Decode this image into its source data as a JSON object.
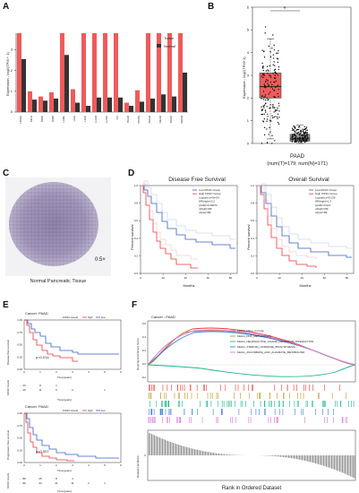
{
  "panels": {
    "A": {
      "label": "A",
      "ylabel": "Expression - log2(TPM + 1)",
      "yticks": [
        "0",
        "1",
        "2",
        "3"
      ],
      "legend": [
        "Tumor",
        "Normal"
      ],
      "colors": {
        "tumor": "#ef5b5b",
        "normal": "#333333"
      },
      "chart_data": {
        "type": "bar",
        "categories": [
          "HNSC",
          "KICH",
          "KIRC",
          "KIRP",
          "LAML",
          "LGG",
          "LIHC",
          "LUAD",
          "LUSC",
          "OV",
          "PAAD",
          "PCPG",
          "PRAD",
          "READ",
          "SARC",
          "SKCM"
        ],
        "series": [
          {
            "name": "Tumor",
            "values": [
              3.8,
              1.0,
              0.75,
              0.95,
              3.8,
              1.1,
              3.8,
              3.8,
              3.8,
              3.8,
              0.45,
              1.05,
              3.8,
              3.8,
              3.8,
              3.8
            ]
          },
          {
            "name": "Normal",
            "values": [
              2.55,
              0.6,
              0.55,
              0.65,
              2.75,
              0.45,
              0.3,
              0.7,
              0.7,
              0.7,
              0.3,
              0.5,
              0.65,
              0.85,
              0.75,
              1.9
            ]
          }
        ],
        "ylim": [
          0,
          3.8
        ]
      }
    },
    "B": {
      "label": "B",
      "ylabel": "Expression - log2(TPM+1)",
      "yticks": [
        "0",
        "1",
        "2",
        "3",
        "4",
        "5",
        "6"
      ],
      "star": "*",
      "xlabel": "PAAD",
      "sub": "(num(T)=179; num(N)=171)",
      "chart_data": {
        "type": "box",
        "groups": [
          "Tumor",
          "Normal"
        ],
        "series": [
          {
            "name": "Tumor",
            "median": 2.5,
            "q1": 2.0,
            "q3": 3.1,
            "whisker_low": 0.2,
            "whisker_high": 4.6
          },
          {
            "name": "Normal",
            "median": 0.2,
            "q1": 0.1,
            "q3": 0.4,
            "whisker_low": 0.0,
            "whisker_high": 0.8
          }
        ],
        "ylim": [
          0,
          6
        ]
      }
    },
    "C": {
      "label": "C",
      "zoom": "0.5×",
      "caption": "Normal Pancreatic Tissue"
    },
    "D": {
      "label": "D",
      "left_title": "Disease Free Survival",
      "right_title": "Overall Survival",
      "ylabel": "Percent survival",
      "xlabel": "Months",
      "left_legend": [
        "Low KIF2C Group",
        "High KIF2C Group",
        "Logrank p=5e-04",
        "HR(high)=2.2",
        "p(HR)=0.00072",
        "n(high)=89",
        "n(low)=89"
      ],
      "right_legend": [
        "Low KIF2C Group",
        "High KIF2C Group",
        "Logrank p=0.016",
        "HR(high)=1.6",
        "p(HR)=0.021",
        "n(high)=89",
        "n(low)=89"
      ],
      "xticks": [
        "0",
        "20",
        "40",
        "60",
        "80"
      ],
      "yticks": [
        "0.0",
        "0.2",
        "0.4",
        "0.6",
        "0.8",
        "1.0"
      ],
      "colors": {
        "low": "#3a5fbf",
        "high": "#e8383d"
      }
    },
    "E": {
      "label": "E",
      "top_title": "Cancer: PAAD",
      "bottom_title": "Cancer: PAAD",
      "legend": [
        "KIF2C levels",
        "high",
        "low"
      ],
      "top_ylabel": "Disease free survival",
      "bottom_ylabel": "Progression free survival",
      "top_p": "p=0.014",
      "bottom_p": "p=0.007",
      "xlabel": "Time(years)",
      "risk_label": "KIF2C levels",
      "xticks": [
        "0",
        "1",
        "2",
        "3",
        "4",
        "5",
        "6"
      ],
      "yticks": [
        "0.00",
        "0.25",
        "0.50",
        "0.75",
        "1.00"
      ],
      "risk_top": {
        "high": [
          "23",
          "8",
          "1",
          "",
          "",
          ""
        ],
        "low": [
          "26",
          "11",
          "6",
          "2",
          "",
          "1"
        ]
      },
      "risk_bottom": {
        "high": [
          "89",
          "25",
          "8",
          "4",
          "",
          ""
        ],
        "low": [
          "89",
          "44",
          "21",
          "11",
          "2",
          "1"
        ]
      },
      "colors": {
        "high": "#e8383d",
        "low": "#3a5fbf"
      }
    },
    "F": {
      "label": "F",
      "title": "Cancer : PAAD",
      "ylabel_top": "Running Enrichment Score",
      "ylabel_bottom": "Ranked List Metric",
      "xlabel": "Rank in Ordered Dataset",
      "yticks": [
        "-0.2",
        "0.0",
        "0.2",
        "0.4",
        "0.6"
      ],
      "legend": [
        {
          "name": "KEGG_CELL_CYCLE",
          "color": "#e8383d"
        },
        {
          "name": "KEGG_DNA_REPLICATION",
          "color": "#b79a2a"
        },
        {
          "name": "KEGG_NEUROACTIVE_LIGAND_RECEPTOR_INTERACTION",
          "color": "#1fb38a"
        },
        {
          "name": "KEGG_STEROID_HORMONE_BIOSYNTHESIS",
          "color": "#3e7bd6"
        },
        {
          "name": "KEGG_ASCORBATE_AND_ALDARATE_METABOLISM",
          "color": "#d872d8"
        }
      ]
    }
  }
}
